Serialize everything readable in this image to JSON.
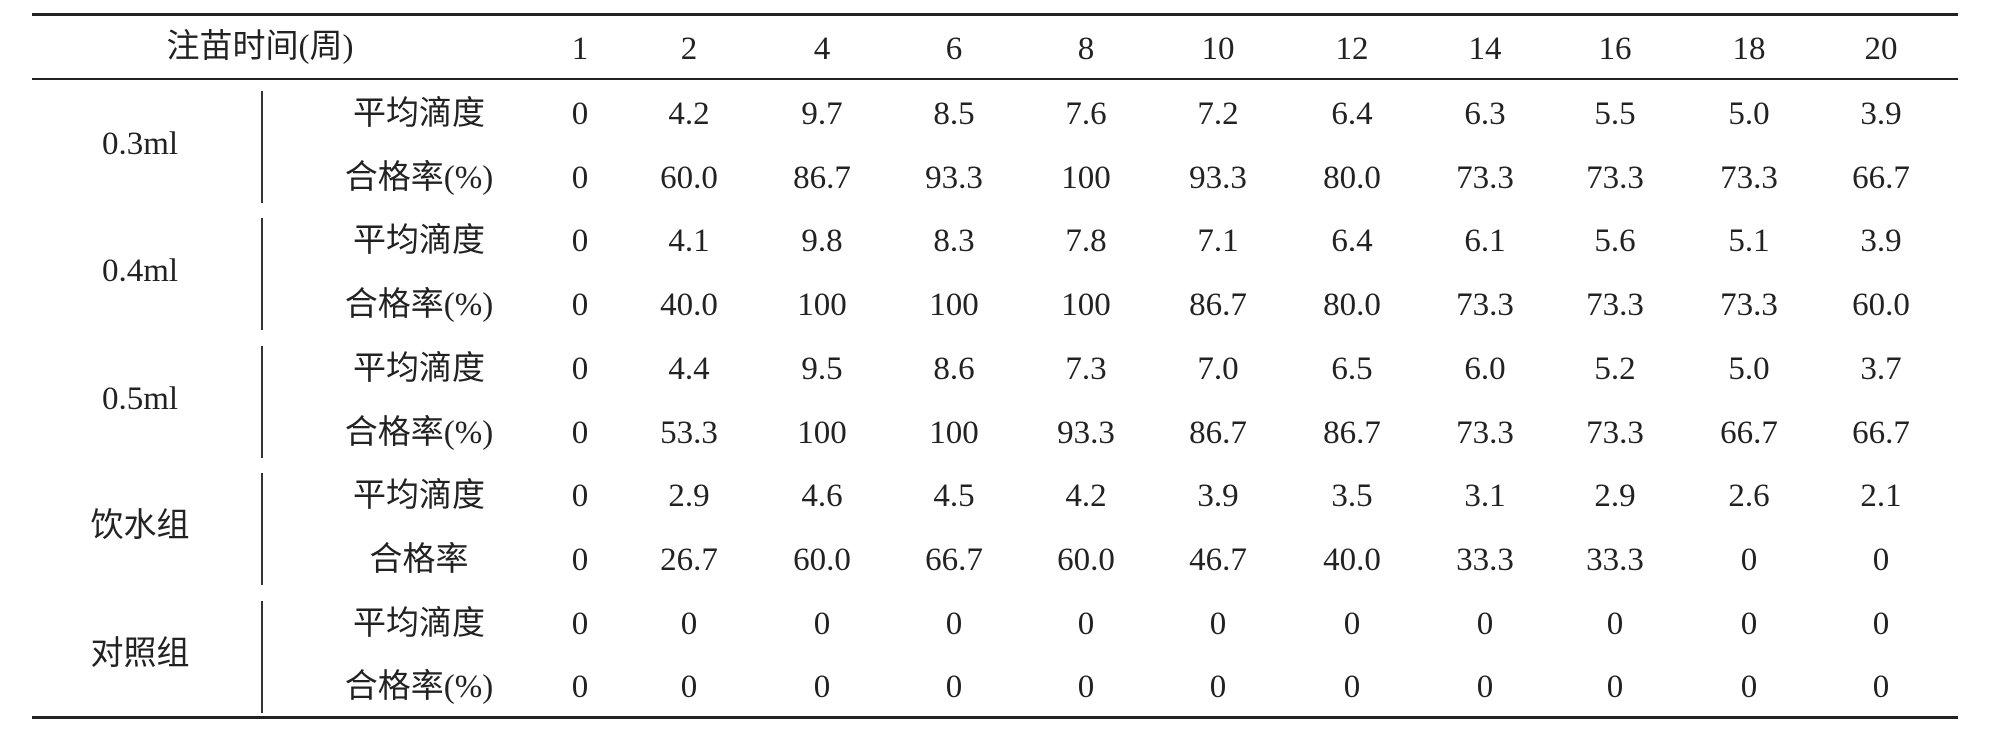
{
  "table": {
    "header": {
      "label": "注苗时间(周)",
      "columns": [
        "1",
        "2",
        "4",
        "6",
        "8",
        "10",
        "12",
        "14",
        "16",
        "18",
        "20"
      ]
    },
    "groups": [
      {
        "label": "0.3ml",
        "rows": [
          {
            "metric": "平均滴度",
            "values": [
              "0",
              "4.2",
              "9.7",
              "8.5",
              "7.6",
              "7.2",
              "6.4",
              "6.3",
              "5.5",
              "5.0",
              "3.9"
            ]
          },
          {
            "metric": "合格率(%)",
            "values": [
              "0",
              "60.0",
              "86.7",
              "93.3",
              "100",
              "93.3",
              "80.0",
              "73.3",
              "73.3",
              "73.3",
              "66.7"
            ]
          }
        ]
      },
      {
        "label": "0.4ml",
        "rows": [
          {
            "metric": "平均滴度",
            "values": [
              "0",
              "4.1",
              "9.8",
              "8.3",
              "7.8",
              "7.1",
              "6.4",
              "6.1",
              "5.6",
              "5.1",
              "3.9"
            ]
          },
          {
            "metric": "合格率(%)",
            "values": [
              "0",
              "40.0",
              "100",
              "100",
              "100",
              "86.7",
              "80.0",
              "73.3",
              "73.3",
              "73.3",
              "60.0"
            ]
          }
        ]
      },
      {
        "label": "0.5ml",
        "rows": [
          {
            "metric": "平均滴度",
            "values": [
              "0",
              "4.4",
              "9.5",
              "8.6",
              "7.3",
              "7.0",
              "6.5",
              "6.0",
              "5.2",
              "5.0",
              "3.7"
            ]
          },
          {
            "metric": "合格率(%)",
            "values": [
              "0",
              "53.3",
              "100",
              "100",
              "93.3",
              "86.7",
              "86.7",
              "73.3",
              "73.3",
              "66.7",
              "66.7"
            ]
          }
        ]
      },
      {
        "label": "饮水组",
        "rows": [
          {
            "metric": "平均滴度",
            "values": [
              "0",
              "2.9",
              "4.6",
              "4.5",
              "4.2",
              "3.9",
              "3.5",
              "3.1",
              "2.9",
              "2.6",
              "2.1"
            ]
          },
          {
            "metric": "合格率",
            "values": [
              "0",
              "26.7",
              "60.0",
              "66.7",
              "60.0",
              "46.7",
              "40.0",
              "33.3",
              "33.3",
              "0",
              "0"
            ]
          }
        ]
      },
      {
        "label": "对照组",
        "rows": [
          {
            "metric": "平均滴度",
            "values": [
              "0",
              "0",
              "0",
              "0",
              "0",
              "0",
              "0",
              "0",
              "0",
              "0",
              "0"
            ]
          },
          {
            "metric": "合格率(%)",
            "values": [
              "0",
              "0",
              "0",
              "0",
              "0",
              "0",
              "0",
              "0",
              "0",
              "0",
              "0"
            ]
          }
        ]
      }
    ]
  }
}
